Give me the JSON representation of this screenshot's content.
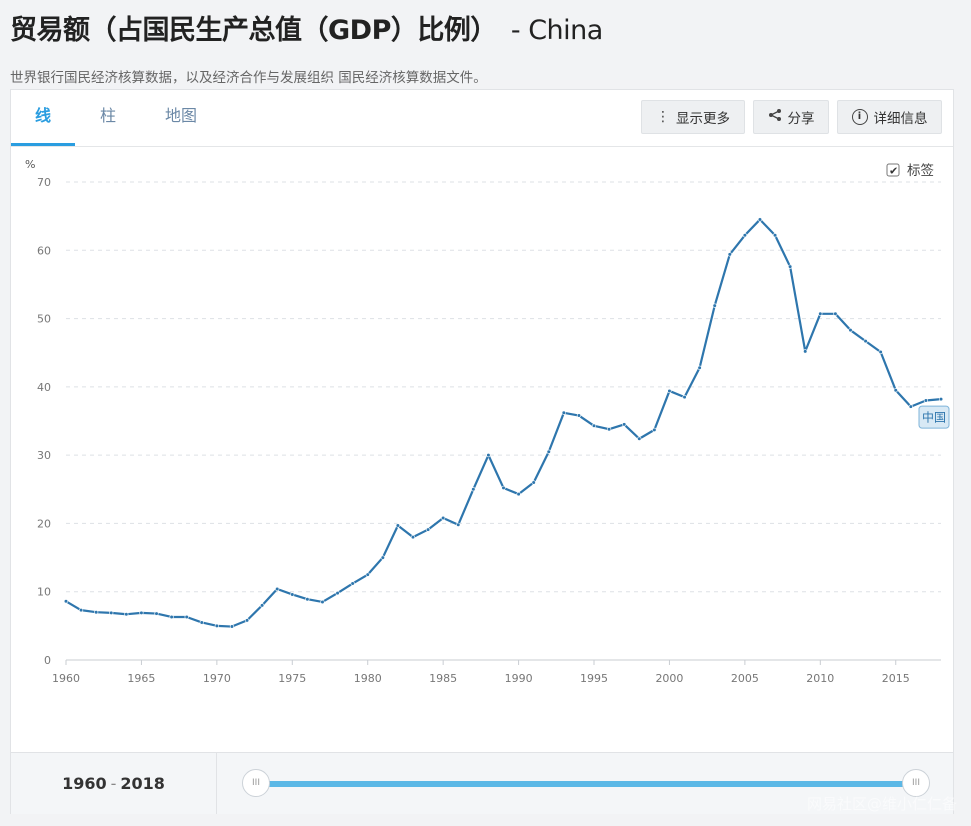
{
  "header": {
    "title": "贸易额（占国民生产总值（GDP）比例）",
    "title_suffix": "- China",
    "subtitle": "世界银行国民经济核算数据，以及经济合作与发展组织 国民经济核算数据文件。"
  },
  "tabs": [
    {
      "label": "线",
      "active": true
    },
    {
      "label": "柱",
      "active": false
    },
    {
      "label": "地图",
      "active": false
    }
  ],
  "toolbar": {
    "more_label": "显示更多",
    "share_label": "分享",
    "details_label": "详细信息",
    "more_icon": "vertical-dots-icon",
    "share_icon": "share-icon",
    "details_icon": "info-icon"
  },
  "labels_toggle": {
    "label": "标签",
    "checked": true
  },
  "range": {
    "start": "1960",
    "sep": "-",
    "end": "2018"
  },
  "watermark": "网易社区@维小仁仁备",
  "chart_data": {
    "type": "line",
    "ylabel": "%",
    "ylim": [
      0,
      70
    ],
    "yticks": [
      0,
      10,
      20,
      30,
      40,
      50,
      60,
      70
    ],
    "xlim": [
      1960,
      2018
    ],
    "xticks": [
      1960,
      1965,
      1970,
      1975,
      1980,
      1985,
      1990,
      1995,
      2000,
      2005,
      2010,
      2015
    ],
    "grid": true,
    "line_color": "#2e76ad",
    "series": [
      {
        "name": "中国",
        "x": [
          1960,
          1961,
          1962,
          1963,
          1964,
          1965,
          1966,
          1967,
          1968,
          1969,
          1970,
          1971,
          1972,
          1973,
          1974,
          1975,
          1976,
          1977,
          1978,
          1979,
          1980,
          1981,
          1982,
          1983,
          1984,
          1985,
          1986,
          1987,
          1988,
          1989,
          1990,
          1991,
          1992,
          1993,
          1994,
          1995,
          1996,
          1997,
          1998,
          1999,
          2000,
          2001,
          2002,
          2003,
          2004,
          2005,
          2006,
          2007,
          2008,
          2009,
          2010,
          2011,
          2012,
          2013,
          2014,
          2015,
          2016,
          2017,
          2018
        ],
        "values": [
          8.6,
          7.3,
          7.0,
          6.9,
          6.7,
          6.9,
          6.8,
          6.3,
          6.3,
          5.5,
          5.0,
          4.9,
          5.8,
          8.0,
          10.4,
          9.6,
          8.9,
          8.5,
          9.8,
          11.2,
          12.5,
          15.0,
          19.7,
          18.0,
          19.1,
          20.8,
          19.8,
          25.0,
          30.0,
          25.2,
          24.3,
          26.0,
          30.5,
          36.2,
          35.8,
          34.3,
          33.8,
          34.5,
          32.4,
          33.7,
          39.4,
          38.5,
          42.8,
          51.9,
          59.4,
          62.2,
          64.5,
          62.2,
          57.6,
          45.2,
          50.7,
          50.7,
          48.3,
          46.7,
          45.1,
          39.5,
          37.1,
          38.0,
          38.2
        ]
      }
    ]
  }
}
